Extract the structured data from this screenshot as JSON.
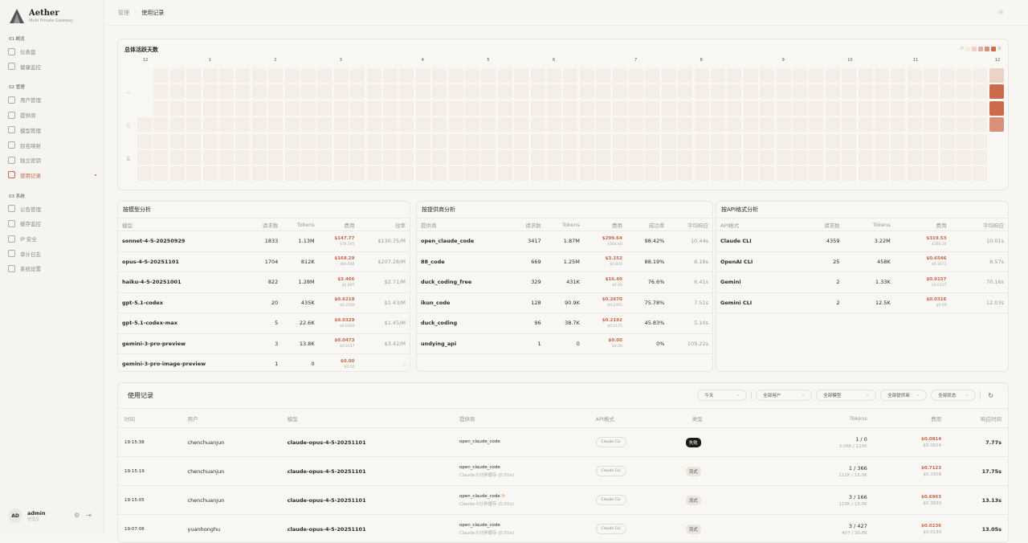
{
  "brand": {
    "name": "Aether",
    "tagline": "Multi Private Gateway"
  },
  "sidebar": {
    "sections": [
      {
        "label": "01 概览",
        "items": [
          {
            "label": "仪表盘",
            "icon": "home-icon"
          },
          {
            "label": "健康监控",
            "icon": "activity-icon"
          }
        ]
      },
      {
        "label": "02 管理",
        "items": [
          {
            "label": "用户管理",
            "icon": "users-icon"
          },
          {
            "label": "提供商",
            "icon": "provider-icon"
          },
          {
            "label": "模型管理",
            "icon": "layers-icon"
          },
          {
            "label": "别名映射",
            "icon": "tag-icon"
          },
          {
            "label": "独立密钥",
            "icon": "key-icon"
          },
          {
            "label": "使用记录",
            "icon": "bar-chart-icon",
            "active": true
          }
        ]
      },
      {
        "label": "03 系统",
        "items": [
          {
            "label": "公告管理",
            "icon": "megaphone-icon"
          },
          {
            "label": "缓存监控",
            "icon": "gauge-icon"
          },
          {
            "label": "IP 安全",
            "icon": "shield-icon"
          },
          {
            "label": "审计日志",
            "icon": "alert-icon"
          },
          {
            "label": "系统设置",
            "icon": "gear-icon"
          }
        ]
      }
    ],
    "user": {
      "initials": "AD",
      "name": "admin",
      "role": "管理员"
    }
  },
  "breadcrumb": {
    "parent": "管理",
    "sep": "›",
    "current": "使用记录"
  },
  "heatmap": {
    "title": "总体活跃天数",
    "legend_low": "少",
    "legend_high": "多",
    "legend_colors": [
      "#f4ede8",
      "#ecd3c8",
      "#e2b2a1",
      "#d8907a",
      "#cc6a4c"
    ],
    "months": [
      "12",
      "1",
      "2",
      "3",
      "4",
      "5",
      "6",
      "7",
      "8",
      "9",
      "10",
      "11",
      "12"
    ],
    "day_labels": [
      "一",
      "三",
      "五"
    ],
    "latest_week_levels": [
      1,
      4,
      4,
      3
    ]
  },
  "model_analysis": {
    "title": "按模型分析",
    "headers": [
      "模型",
      "请求数",
      "Tokens",
      "费用",
      "效率"
    ],
    "rows": [
      {
        "name": "sonnet-4-5-20250929",
        "requests": "1833",
        "tokens": "1.13M",
        "cost": "$147.77",
        "cost_sub": "$78.745",
        "eff": "$130.75/M"
      },
      {
        "name": "opus-4-5-20251101",
        "requests": "1704",
        "tokens": "812K",
        "cost": "$168.29",
        "cost_sub": "$86.608",
        "eff": "$207.28/M"
      },
      {
        "name": "haiku-4-5-20251001",
        "requests": "822",
        "tokens": "1.28M",
        "cost": "$3.466",
        "cost_sub": "$2.845",
        "eff": "$2.71/M"
      },
      {
        "name": "gpt-5.1-codex",
        "requests": "20",
        "tokens": "435K",
        "cost": "$0.6218",
        "cost_sub": "$0.3109",
        "eff": "$1.43/M"
      },
      {
        "name": "gpt-5.1-codex-max",
        "requests": "5",
        "tokens": "22.6K",
        "cost": "$0.0329",
        "cost_sub": "$0.0164",
        "eff": "$1.45/M"
      },
      {
        "name": "gemini-3-pro-preview",
        "requests": "3",
        "tokens": "13.8K",
        "cost": "$0.0473",
        "cost_sub": "$0.0157",
        "eff": "$3.42/M"
      },
      {
        "name": "gemini-3-pro-image-preview",
        "requests": "1",
        "tokens": "0",
        "cost": "$0.00",
        "cost_sub": "$0.00",
        "eff": "-"
      }
    ]
  },
  "provider_analysis": {
    "title": "按提供商分析",
    "headers": [
      "提供商",
      "请求数",
      "Tokens",
      "费用",
      "成功率",
      "平均响应"
    ],
    "rows": [
      {
        "name": "open_claude_code",
        "requests": "3417",
        "tokens": "1.87M",
        "cost": "$299.64",
        "cost_sub": "$164.80",
        "rate": "98.42%",
        "resp": "10.44s"
      },
      {
        "name": "88_code",
        "requests": "669",
        "tokens": "1.25M",
        "cost": "$3.152",
        "cost_sub": "$2.824",
        "rate": "88.19%",
        "resp": "8.16s"
      },
      {
        "name": "duck_coding_free",
        "requests": "329",
        "tokens": "431K",
        "cost": "$16.40",
        "cost_sub": "$0.00",
        "rate": "76.6%",
        "resp": "6.41s"
      },
      {
        "name": "ikun_code",
        "requests": "128",
        "tokens": "90.9K",
        "cost": "$0.2670",
        "cost_sub": "$0.2403",
        "rate": "75.78%",
        "resp": "7.51s"
      },
      {
        "name": "duck_coding",
        "requests": "96",
        "tokens": "38.7K",
        "cost": "$0.2192",
        "cost_sub": "$0.1175",
        "rate": "45.83%",
        "resp": "5.10s"
      },
      {
        "name": "undying_api",
        "requests": "1",
        "tokens": "0",
        "cost": "$0.00",
        "cost_sub": "$0.00",
        "rate": "0%",
        "resp": "109.22s"
      }
    ]
  },
  "api_analysis": {
    "title": "按API格式分析",
    "headers": [
      "API格式",
      "请求数",
      "Tokens",
      "费用",
      "平均响应"
    ],
    "rows": [
      {
        "name": "Claude CLI",
        "requests": "4359",
        "tokens": "3.22M",
        "cost": "$319.53",
        "cost_sub": "$168.20",
        "resp": "10.01s"
      },
      {
        "name": "OpenAI CLI",
        "requests": "25",
        "tokens": "458K",
        "cost": "$0.6546",
        "cost_sub": "$0.3273",
        "resp": "8.57s"
      },
      {
        "name": "Gemini",
        "requests": "2",
        "tokens": "1.33K",
        "cost": "$0.0157",
        "cost_sub": "$0.0157",
        "resp": "70.16s"
      },
      {
        "name": "Gemini CLI",
        "requests": "2",
        "tokens": "12.5K",
        "cost": "$0.0316",
        "cost_sub": "$0.00",
        "resp": "12.03s"
      }
    ]
  },
  "usage": {
    "title": "使用记录",
    "filters": [
      "今天",
      "全部用户",
      "全部模型",
      "全部提供商",
      "全部状态"
    ],
    "headers": [
      "时间",
      "用户",
      "模型",
      "提供商",
      "API格式",
      "类型",
      "Tokens",
      "费用",
      "响应时间"
    ],
    "rows": [
      {
        "time": "19:15:38",
        "user": "chenchuanjun",
        "model": "claude-opus-4-5-20251101",
        "provider": "open_claude_code",
        "provider_sub": "",
        "api": "Claude CLI",
        "type": "失败",
        "type_kind": "fail",
        "tokens": "1 / 0",
        "tokens_sub": "3.06K / 125K",
        "cost": "$0.0814",
        "cost_sub": "$0.0814",
        "resp": "7.77s"
      },
      {
        "time": "19:15:19",
        "user": "chenchuanjun",
        "model": "claude-opus-4-5-20251101",
        "provider": "open_claude_code",
        "provider_sub": "Claude-5分钟缓存 (0.55x)",
        "api": "Claude CLI",
        "type": "流式",
        "type_kind": "stream",
        "tokens": "1 / 366",
        "tokens_sub": "111K / 15.0K",
        "cost": "$0.7123",
        "cost_sub": "$0.3918",
        "resp": "17.75s"
      },
      {
        "time": "19:15:05",
        "user": "chenchuanjun",
        "model": "claude-opus-4-5-20251101",
        "provider": "open_claude_code",
        "provider_sub": "Claude-5分钟缓存 (0.55x)",
        "retry": true,
        "api": "Claude CLI",
        "type": "流式",
        "type_kind": "stream",
        "tokens": "3 / 166",
        "tokens_sub": "110K / 15.0K",
        "cost": "$0.6963",
        "cost_sub": "$0.3830",
        "resp": "13.13s"
      },
      {
        "time": "19:07:06",
        "user": "yuanhonghu",
        "model": "claude-opus-4-5-20251101",
        "provider": "open_claude_code",
        "provider_sub": "Claude-5分钟缓存 (0.55x)",
        "api": "Claude CLI",
        "type": "流式",
        "type_kind": "stream",
        "tokens": "3 / 427",
        "tokens_sub": "407 / 20.8K",
        "cost": "$0.0236",
        "cost_sub": "$0.0130",
        "resp": "13.05s"
      }
    ]
  }
}
